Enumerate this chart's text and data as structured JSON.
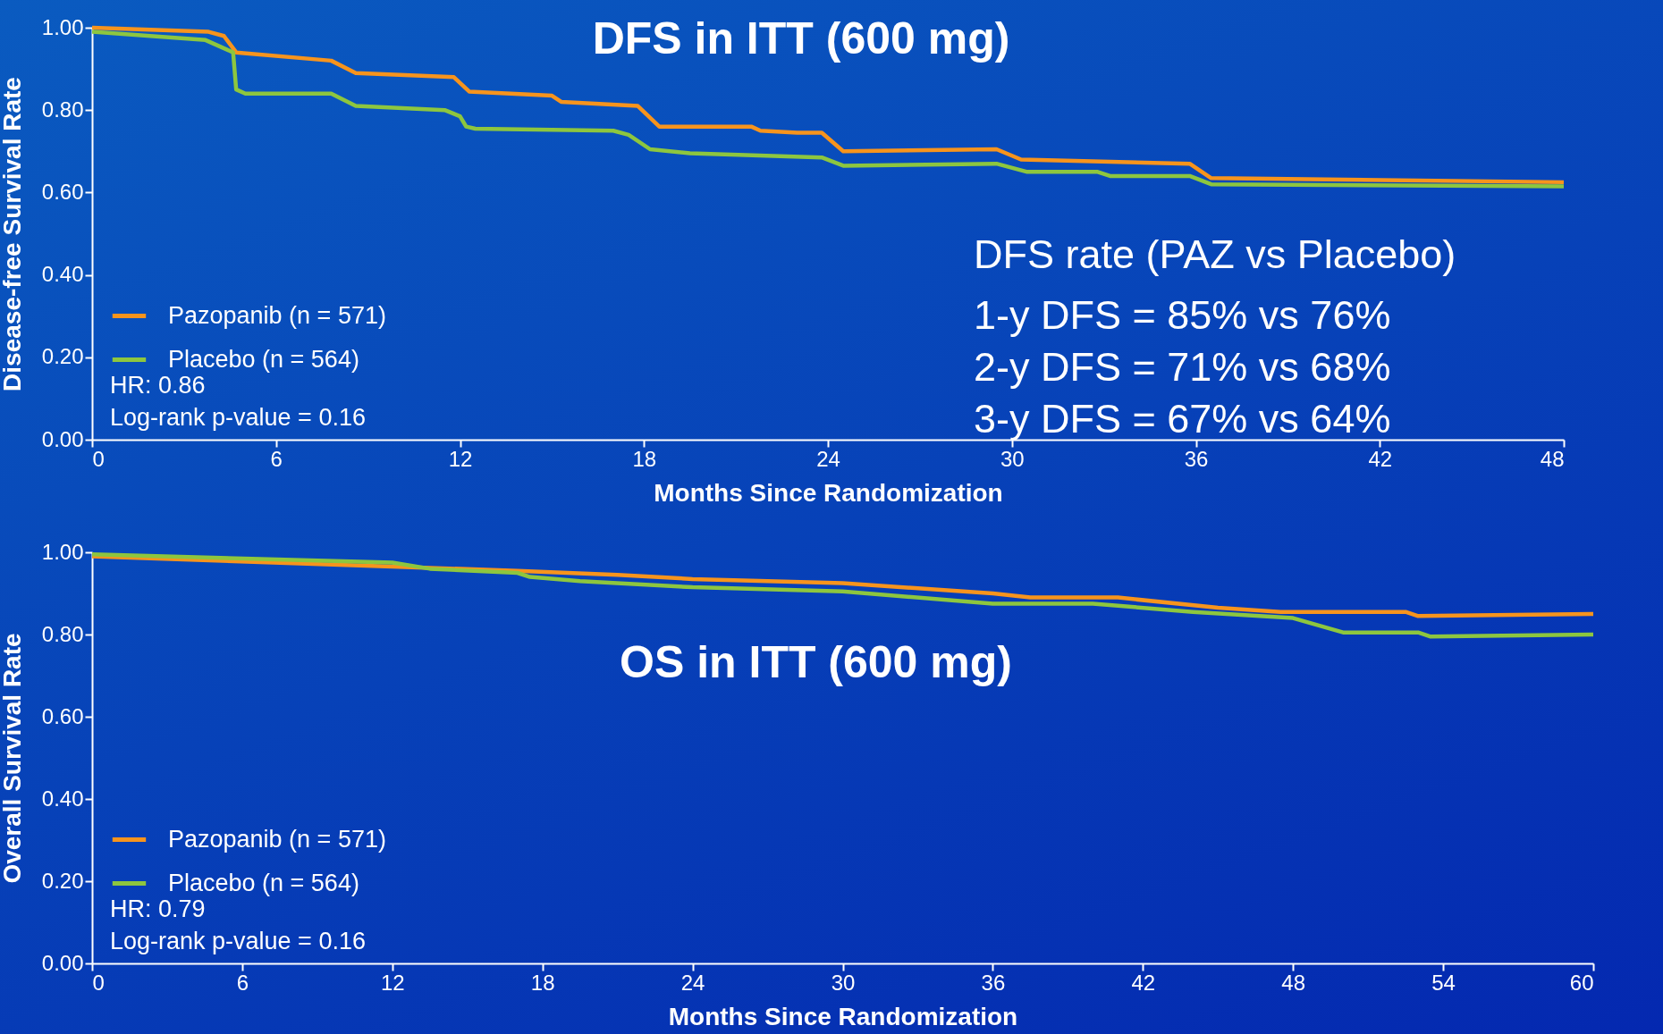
{
  "chart_data": [
    {
      "type": "line",
      "title": "DFS in ITT (600 mg)",
      "xlabel": "Months Since Randomization",
      "ylabel": "Disease-free Survival Rate",
      "xlim": [
        0,
        48
      ],
      "xticks": [
        0,
        6,
        12,
        18,
        24,
        30,
        36,
        42,
        48
      ],
      "ylim": [
        0,
        1
      ],
      "yticks": [
        {
          "value": 0,
          "label": "0.00"
        },
        {
          "value": 0.2,
          "label": "0.20"
        },
        {
          "value": 0.4,
          "label": "0.40"
        },
        {
          "value": 0.6,
          "label": "0.60"
        },
        {
          "value": 0.8,
          "label": "0.80"
        },
        {
          "value": 1,
          "label": "1.00"
        }
      ],
      "legend": "bottom left",
      "grid": false,
      "line_style": "solid",
      "marker": "none",
      "annotations": [
        "HR: 0.86",
        "Log-rank p-value = 0.16",
        "DFS rate (PAZ vs Placebo)",
        "1-y DFS = 85% vs 76%",
        "2-y DFS = 71% vs 68%",
        "3-y DFS = 67% vs 64%"
      ],
      "series": [
        {
          "name": "Pazopanib (n = 571)",
          "color": "#f7941d",
          "x": [
            0,
            3.8,
            4.3,
            4.7,
            7.8,
            8.6,
            11.8,
            12.3,
            15,
            15.3,
            17.8,
            18.5,
            21.5,
            21.8,
            23,
            23.8,
            24.5,
            29.5,
            30.3,
            35.8,
            36.5,
            48
          ],
          "values": [
            1.0,
            0.99,
            0.98,
            0.94,
            0.92,
            0.89,
            0.88,
            0.845,
            0.835,
            0.82,
            0.81,
            0.76,
            0.76,
            0.75,
            0.745,
            0.745,
            0.7,
            0.705,
            0.68,
            0.67,
            0.635,
            0.625
          ]
        },
        {
          "name": "Placebo (n = 564)",
          "color": "#8dc63f",
          "x": [
            0,
            3.7,
            4.6,
            4.7,
            5,
            7.8,
            8.6,
            11.5,
            12,
            12.2,
            12.5,
            17,
            17.5,
            18.2,
            19.5,
            23.8,
            24.5,
            29.5,
            30.5,
            32.8,
            33.2,
            35.8,
            36.5,
            48
          ],
          "values": [
            0.99,
            0.97,
            0.94,
            0.85,
            0.84,
            0.84,
            0.81,
            0.8,
            0.785,
            0.76,
            0.755,
            0.75,
            0.74,
            0.705,
            0.695,
            0.685,
            0.665,
            0.67,
            0.65,
            0.65,
            0.64,
            0.64,
            0.62,
            0.615
          ]
        }
      ]
    },
    {
      "type": "line",
      "title": "OS in ITT (600 mg)",
      "xlabel": "Months Since Randomization",
      "ylabel": "Overall Survival Rate",
      "xlim": [
        0,
        60
      ],
      "xticks": [
        0,
        6,
        12,
        18,
        24,
        30,
        36,
        42,
        48,
        54,
        60
      ],
      "ylim": [
        0,
        1
      ],
      "yticks": [
        {
          "value": 0,
          "label": "0.00"
        },
        {
          "value": 0.2,
          "label": "0.20"
        },
        {
          "value": 0.4,
          "label": "0.40"
        },
        {
          "value": 0.6,
          "label": "0.60"
        },
        {
          "value": 0.8,
          "label": "0.80"
        },
        {
          "value": 1,
          "label": "1.00"
        }
      ],
      "legend": "bottom left",
      "grid": false,
      "line_style": "solid",
      "marker": "none",
      "annotations": [
        "HR: 0.79",
        "Log-rank p-value = 0.16"
      ],
      "series": [
        {
          "name": "Pazopanib (n = 571)",
          "color": "#f7941d",
          "x": [
            0,
            12,
            17,
            21,
            24,
            30,
            36,
            37.5,
            41,
            45,
            47.5,
            52.5,
            53,
            60
          ],
          "values": [
            0.99,
            0.965,
            0.955,
            0.945,
            0.935,
            0.925,
            0.9,
            0.89,
            0.89,
            0.865,
            0.855,
            0.855,
            0.845,
            0.85
          ]
        },
        {
          "name": "Placebo (n = 564)",
          "color": "#8dc63f",
          "x": [
            0,
            12,
            13.5,
            17,
            17.5,
            19.5,
            24,
            30,
            36,
            40,
            44,
            48,
            50,
            53,
            53.5,
            60
          ],
          "values": [
            0.995,
            0.975,
            0.96,
            0.95,
            0.94,
            0.93,
            0.915,
            0.905,
            0.875,
            0.875,
            0.855,
            0.84,
            0.805,
            0.805,
            0.795,
            0.8
          ]
        }
      ]
    }
  ]
}
